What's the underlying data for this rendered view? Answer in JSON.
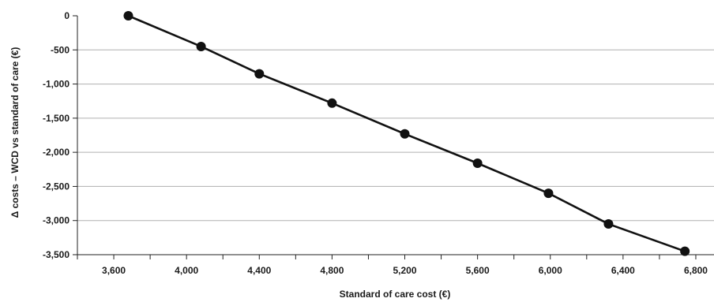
{
  "chart_data": {
    "type": "line",
    "title": "",
    "xlabel": "Standard of care cost (€)",
    "ylabel": "Δ costs – WCD vs standard of care (€)",
    "xlim": [
      3400,
      6900
    ],
    "ylim": [
      -3500,
      0
    ],
    "xticks": [
      3600,
      4000,
      4400,
      4800,
      5200,
      5600,
      6000,
      6400,
      6800
    ],
    "xtick_labels": [
      "3,600",
      "4,000",
      "4,400",
      "4,800",
      "5,200",
      "5,600",
      "6,000",
      "6,400",
      "6,800"
    ],
    "yticks": [
      0,
      -500,
      -1000,
      -1500,
      -2000,
      -2500,
      -3000,
      -3500
    ],
    "ytick_labels": [
      "0",
      "-500",
      "-1,000",
      "-1,500",
      "-2,000",
      "-2,500",
      "-3,000",
      "-3,500"
    ],
    "grid": true,
    "series": [
      {
        "x": [
          3680,
          4080,
          4400,
          4800,
          5200,
          5600,
          5990,
          6320,
          6740
        ],
        "y": [
          0,
          -450,
          -850,
          -1280,
          -1730,
          -2160,
          -2600,
          -3050,
          -3450
        ]
      }
    ],
    "colors": {
      "line": "#111111",
      "marker": "#111111",
      "grid": "#b0b0b0",
      "axis": "#222222"
    }
  }
}
